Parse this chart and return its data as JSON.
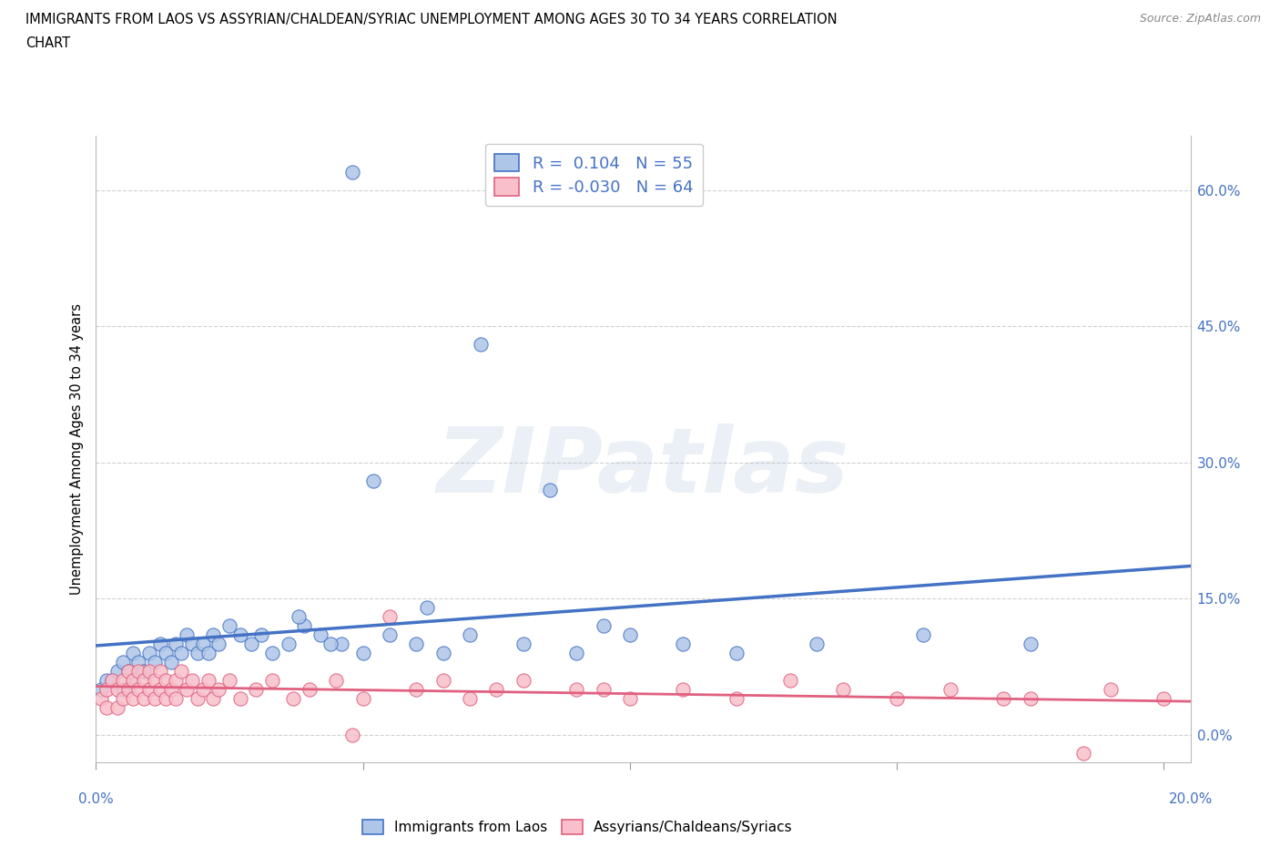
{
  "title_line1": "IMMIGRANTS FROM LAOS VS ASSYRIAN/CHALDEAN/SYRIAC UNEMPLOYMENT AMONG AGES 30 TO 34 YEARS CORRELATION",
  "title_line2": "CHART",
  "source": "Source: ZipAtlas.com",
  "ylabel": "Unemployment Among Ages 30 to 34 years",
  "yticks": [
    0.0,
    0.15,
    0.3,
    0.45,
    0.6
  ],
  "ytick_labels": [
    "0.0%",
    "15.0%",
    "30.0%",
    "45.0%",
    "60.0%"
  ],
  "xlim": [
    0.0,
    0.205
  ],
  "ylim": [
    -0.03,
    0.66
  ],
  "r_blue": 0.104,
  "n_blue": 55,
  "r_pink": -0.03,
  "n_pink": 64,
  "blue_face_color": "#aec6e8",
  "blue_edge_color": "#4472C4",
  "pink_face_color": "#f9c0cb",
  "pink_edge_color": "#E06080",
  "blue_line_color": "#4472C4",
  "pink_line_color": "#E06080",
  "legend_label_blue": "Immigrants from Laos",
  "legend_label_pink": "Assyrians/Chaldeans/Syriacs",
  "watermark": "ZIPatlas",
  "background_color": "#ffffff",
  "grid_color": "#d0d0d0",
  "blue_x": [
    0.001,
    0.002,
    0.003,
    0.004,
    0.005,
    0.005,
    0.006,
    0.007,
    0.007,
    0.008,
    0.009,
    0.01,
    0.011,
    0.012,
    0.013,
    0.014,
    0.015,
    0.016,
    0.017,
    0.018,
    0.019,
    0.02,
    0.021,
    0.022,
    0.023,
    0.025,
    0.027,
    0.029,
    0.031,
    0.033,
    0.036,
    0.039,
    0.042,
    0.046,
    0.05,
    0.055,
    0.06,
    0.065,
    0.07,
    0.08,
    0.09,
    0.1,
    0.11,
    0.12,
    0.038,
    0.044,
    0.052,
    0.062,
    0.072,
    0.085,
    0.095,
    0.135,
    0.155,
    0.175,
    0.048
  ],
  "blue_y": [
    0.05,
    0.06,
    0.06,
    0.07,
    0.05,
    0.08,
    0.07,
    0.06,
    0.09,
    0.08,
    0.07,
    0.09,
    0.08,
    0.1,
    0.09,
    0.08,
    0.1,
    0.09,
    0.11,
    0.1,
    0.09,
    0.1,
    0.09,
    0.11,
    0.1,
    0.12,
    0.11,
    0.1,
    0.11,
    0.09,
    0.1,
    0.12,
    0.11,
    0.1,
    0.09,
    0.11,
    0.1,
    0.09,
    0.11,
    0.1,
    0.09,
    0.11,
    0.1,
    0.09,
    0.13,
    0.1,
    0.28,
    0.14,
    0.43,
    0.27,
    0.12,
    0.1,
    0.11,
    0.1,
    0.62
  ],
  "pink_x": [
    0.001,
    0.002,
    0.002,
    0.003,
    0.004,
    0.004,
    0.005,
    0.005,
    0.006,
    0.006,
    0.007,
    0.007,
    0.008,
    0.008,
    0.009,
    0.009,
    0.01,
    0.01,
    0.011,
    0.011,
    0.012,
    0.012,
    0.013,
    0.013,
    0.014,
    0.015,
    0.015,
    0.016,
    0.017,
    0.018,
    0.019,
    0.02,
    0.021,
    0.022,
    0.023,
    0.025,
    0.027,
    0.03,
    0.033,
    0.037,
    0.04,
    0.045,
    0.05,
    0.055,
    0.06,
    0.065,
    0.07,
    0.075,
    0.08,
    0.09,
    0.1,
    0.11,
    0.12,
    0.13,
    0.14,
    0.15,
    0.16,
    0.17,
    0.048,
    0.095,
    0.175,
    0.185,
    0.19,
    0.2
  ],
  "pink_y": [
    0.04,
    0.05,
    0.03,
    0.06,
    0.05,
    0.03,
    0.06,
    0.04,
    0.07,
    0.05,
    0.06,
    0.04,
    0.07,
    0.05,
    0.06,
    0.04,
    0.07,
    0.05,
    0.06,
    0.04,
    0.07,
    0.05,
    0.06,
    0.04,
    0.05,
    0.06,
    0.04,
    0.07,
    0.05,
    0.06,
    0.04,
    0.05,
    0.06,
    0.04,
    0.05,
    0.06,
    0.04,
    0.05,
    0.06,
    0.04,
    0.05,
    0.06,
    0.04,
    0.13,
    0.05,
    0.06,
    0.04,
    0.05,
    0.06,
    0.05,
    0.04,
    0.05,
    0.04,
    0.06,
    0.05,
    0.04,
    0.05,
    0.04,
    0.0,
    0.05,
    0.04,
    -0.02,
    0.05,
    0.04
  ]
}
